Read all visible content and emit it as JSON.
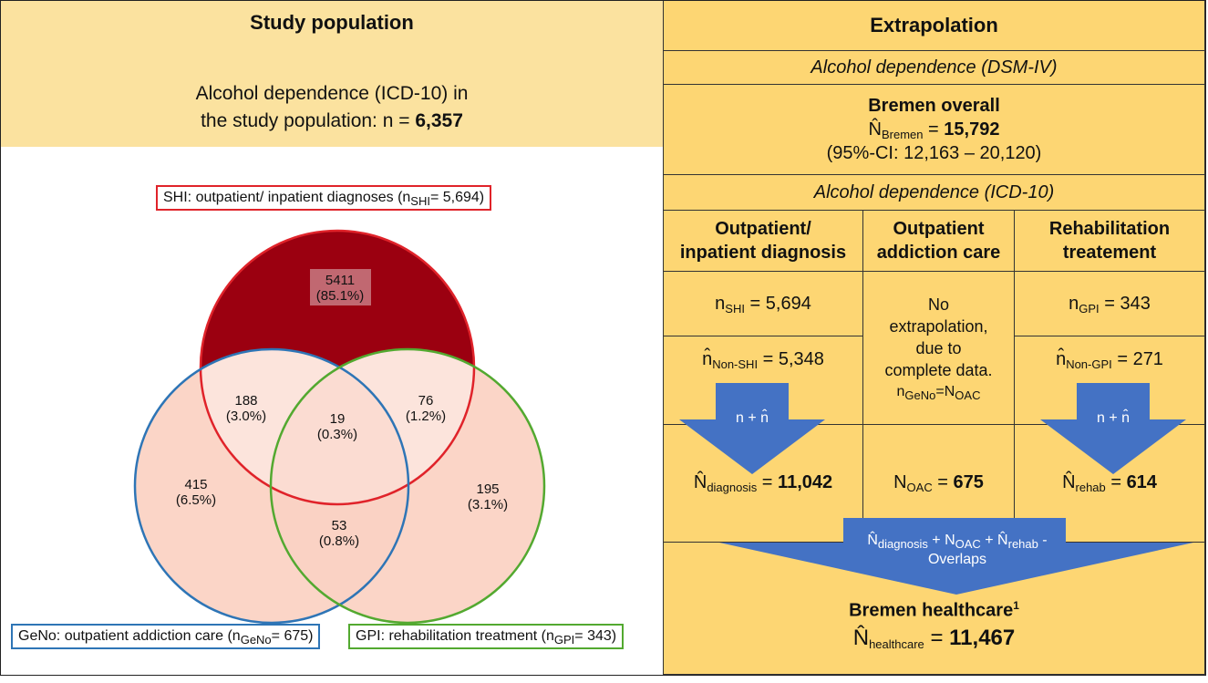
{
  "study_population": {
    "title": "Study population",
    "line1": "Alcohol dependence (ICD-10) in",
    "line2_prefix": "the study population: n = ",
    "line2_value": "6,357"
  },
  "venn": {
    "set_shi": {
      "text_prefix": "SHI: outpatient/ inpatient diagnoses (n",
      "sub": "SHI",
      "text_suffix": "= 5,694)",
      "color": "#e0232a",
      "fill": "#9b0010"
    },
    "set_geno": {
      "text_prefix": "GeNo: outpatient addiction care (n",
      "sub": "GeNo",
      "text_suffix": "= 675)",
      "color": "#2e75b6"
    },
    "set_gpi": {
      "text_prefix": "GPI: rehabilitation treatment (n",
      "sub": "GPI",
      "text_suffix": "= 343)",
      "color": "#53a930"
    },
    "regions": {
      "shi_only": {
        "count": "5411",
        "pct": "(85.1%)"
      },
      "shi_geno": {
        "count": "188",
        "pct": "(3.0%)"
      },
      "all_three": {
        "count": "19",
        "pct": "(0.3%)"
      },
      "shi_gpi": {
        "count": "76",
        "pct": "(1.2%)"
      },
      "geno_only": {
        "count": "415",
        "pct": "(6.5%)"
      },
      "gpi_only": {
        "count": "195",
        "pct": "(3.1%)"
      },
      "geno_gpi": {
        "count": "53",
        "pct": "(0.8%)"
      }
    },
    "light_fill": "#fbd5c7"
  },
  "extrapolation": {
    "title": "Extrapolation",
    "dsm_label": "Alcohol dependence  (DSM-IV)",
    "bremen_overall": "Bremen overall",
    "n_bremen_sub": "Bremen",
    "n_bremen_value": "15,792",
    "ci": "(95%-CI: 12,163 – 20,120)",
    "icd_label": "Alcohol dependence  (ICD-10)",
    "col1_header": [
      "Outpatient/",
      "inpatient diagnosis"
    ],
    "col2_header": [
      "Outpatient",
      "addiction care"
    ],
    "col3_header": [
      "Rehabilitation",
      "treatement"
    ],
    "n_shi_sub": "SHI",
    "n_shi_value": "= 5,694",
    "n_nonshi_sub": "Non-SHI",
    "n_nonshi_value": "= 5,348",
    "no_extrap": [
      "No",
      "extrapolation,",
      "due to",
      "complete data."
    ],
    "geno_eq_left": "GeNo",
    "geno_eq_right": "OAC",
    "n_gpi_sub": "GPI",
    "n_gpi_value": "= 343",
    "n_nongpi_sub": "Non-GPI",
    "n_nongpi_value": "= 271",
    "arrow_left_label": "n + n̂",
    "arrow_right_label": "n + n̂",
    "diag_sub": "diagnosis",
    "diag_value": "11,042",
    "oac_sub": "OAC",
    "oac_value": "675",
    "rehab_sub": "rehab",
    "rehab_value": "614",
    "sum_label_parts": [
      "diagnosis",
      "OAC",
      "rehab"
    ],
    "sum_label_line2": "Overlaps",
    "healthcare_title": "Bremen healthcare",
    "healthcare_sup": "1",
    "healthcare_sub": "healthcare",
    "healthcare_value": "11,467",
    "arrow_color": "#4472c4"
  }
}
